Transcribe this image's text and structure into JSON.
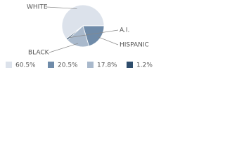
{
  "chart_data": {
    "type": "pie",
    "categories": [
      "WHITE",
      "HISPANIC",
      "BLACK",
      "A.I."
    ],
    "values": [
      60.5,
      20.5,
      17.8,
      1.2
    ],
    "value_labels": [
      "60.5%",
      "20.5%",
      "17.8%",
      "1.2%"
    ],
    "colors": [
      "#dce2eb",
      "#6f8ba9",
      "#a9b9cc",
      "#2e4d6c"
    ]
  }
}
